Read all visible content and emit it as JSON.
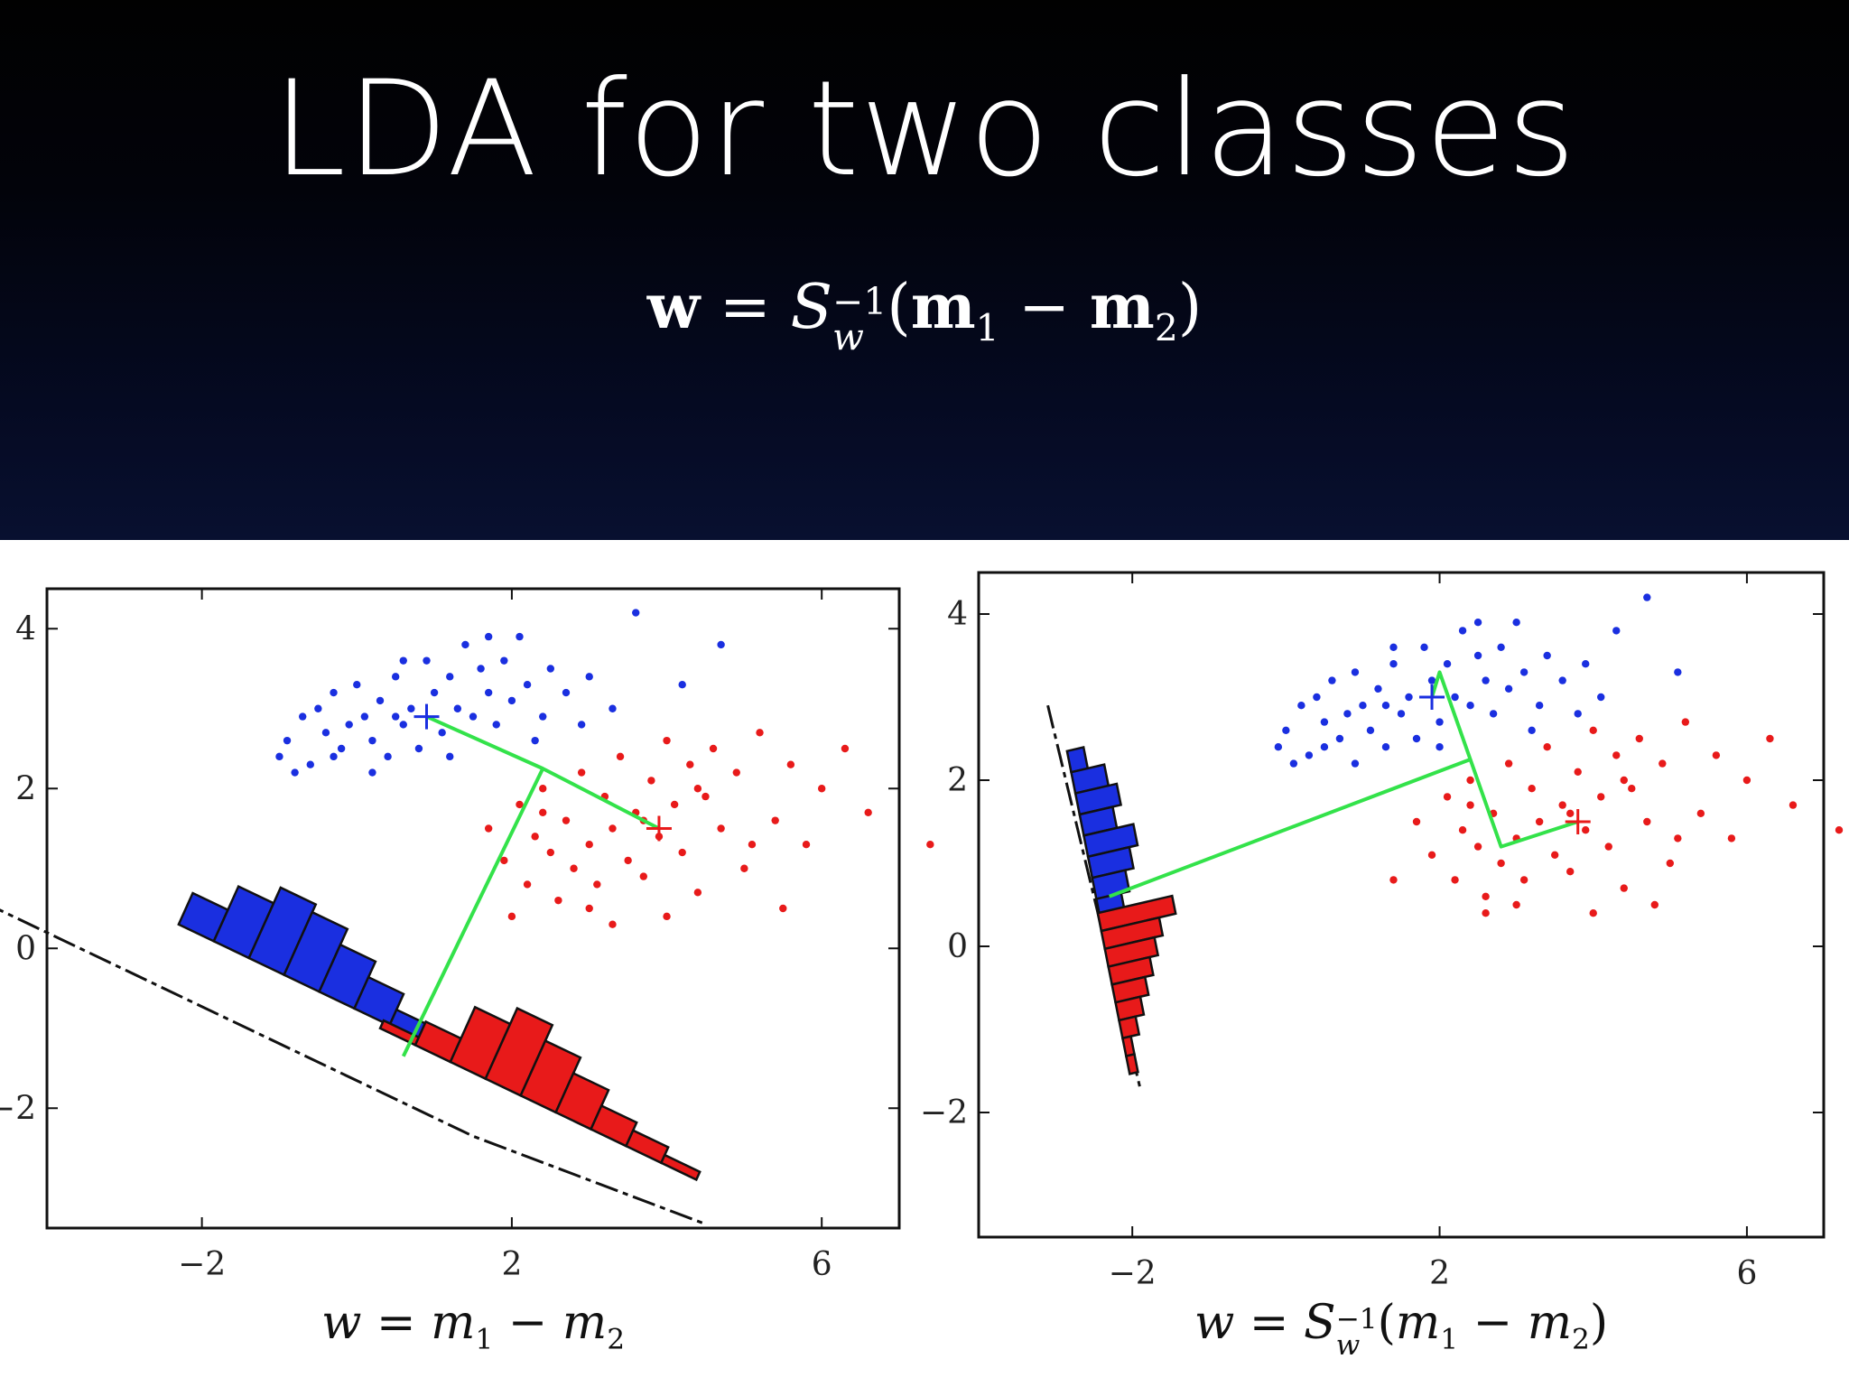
{
  "slide": {
    "title": "LDA for two classes",
    "formula": {
      "w": "w",
      "eq": " = ",
      "S": "S",
      "sup": "−1",
      "sub": "w",
      "paren_open": "(",
      "m1": "m",
      "m1_sub": "1",
      "minus": " − ",
      "m2": "m",
      "m2_sub": "2",
      "paren_close": ")"
    }
  },
  "captions": {
    "left": {
      "w": "w",
      "eq": " = ",
      "m1": "m",
      "m1_sub": "1",
      "minus": " − ",
      "m2": "m",
      "m2_sub": "2"
    },
    "right": {
      "w": "w",
      "eq": " = ",
      "S": "S",
      "sup": "−1",
      "sub": "w",
      "open": "(",
      "m1": "m",
      "m1_sub": "1",
      "minus": " − ",
      "m2": "m",
      "m2_sub": "2",
      "close": ")"
    }
  },
  "colors": {
    "class1": "#1a2fe0",
    "class2": "#e81a1a",
    "projection": "#33e24a",
    "axis": "#111111"
  },
  "chart_data": [
    {
      "type": "scatter",
      "title": "",
      "xlabel": "",
      "ylabel": "",
      "xlim": [
        -4,
        7
      ],
      "ylim": [
        -3.5,
        4.5
      ],
      "xticks": [
        -2,
        2,
        6
      ],
      "yticks": [
        -2,
        0,
        2,
        4
      ],
      "xtick_labels": [
        "−2",
        "2",
        "6"
      ],
      "ytick_labels": [
        "−2",
        "0",
        "2",
        "4"
      ],
      "grid": false,
      "series": [
        {
          "color": "#1a2fe0",
          "points": [
            [
              -1.0,
              2.4
            ],
            [
              -0.9,
              2.6
            ],
            [
              -0.7,
              2.9
            ],
            [
              -0.6,
              2.3
            ],
            [
              -0.5,
              3.0
            ],
            [
              -0.4,
              2.7
            ],
            [
              -0.3,
              3.2
            ],
            [
              -0.2,
              2.5
            ],
            [
              -0.1,
              2.8
            ],
            [
              0.0,
              3.3
            ],
            [
              0.1,
              2.9
            ],
            [
              0.2,
              2.6
            ],
            [
              0.3,
              3.1
            ],
            [
              0.4,
              2.4
            ],
            [
              0.5,
              3.4
            ],
            [
              0.6,
              2.8
            ],
            [
              0.7,
              3.0
            ],
            [
              0.8,
              2.5
            ],
            [
              0.9,
              3.6
            ],
            [
              1.0,
              3.2
            ],
            [
              1.1,
              2.7
            ],
            [
              1.2,
              3.4
            ],
            [
              1.3,
              3.0
            ],
            [
              1.4,
              3.8
            ],
            [
              1.5,
              2.9
            ],
            [
              1.6,
              3.5
            ],
            [
              1.7,
              3.2
            ],
            [
              1.8,
              2.8
            ],
            [
              1.9,
              3.6
            ],
            [
              2.0,
              3.1
            ],
            [
              2.1,
              3.9
            ],
            [
              2.2,
              3.3
            ],
            [
              2.4,
              2.9
            ],
            [
              2.5,
              3.5
            ],
            [
              2.7,
              3.2
            ],
            [
              2.9,
              2.8
            ],
            [
              3.0,
              3.4
            ],
            [
              3.3,
              3.0
            ],
            [
              3.6,
              4.2
            ],
            [
              4.2,
              3.3
            ],
            [
              4.7,
              3.8
            ],
            [
              -0.8,
              2.2
            ],
            [
              0.2,
              2.2
            ],
            [
              0.6,
              3.6
            ],
            [
              1.2,
              2.4
            ],
            [
              -0.3,
              2.4
            ],
            [
              0.5,
              2.9
            ],
            [
              1.7,
              3.9
            ],
            [
              2.3,
              2.6
            ]
          ]
        },
        {
          "color": "#e81a1a",
          "points": [
            [
              1.7,
              1.5
            ],
            [
              1.9,
              1.1
            ],
            [
              2.1,
              1.8
            ],
            [
              2.2,
              0.8
            ],
            [
              2.3,
              1.4
            ],
            [
              2.4,
              2.0
            ],
            [
              2.5,
              1.2
            ],
            [
              2.6,
              0.6
            ],
            [
              2.7,
              1.6
            ],
            [
              2.8,
              1.0
            ],
            [
              2.9,
              2.2
            ],
            [
              3.0,
              1.3
            ],
            [
              3.1,
              0.8
            ],
            [
              3.2,
              1.9
            ],
            [
              3.3,
              1.5
            ],
            [
              3.4,
              2.4
            ],
            [
              3.5,
              1.1
            ],
            [
              3.6,
              1.7
            ],
            [
              3.7,
              0.9
            ],
            [
              3.8,
              2.1
            ],
            [
              3.9,
              1.4
            ],
            [
              4.0,
              2.6
            ],
            [
              4.1,
              1.8
            ],
            [
              4.2,
              1.2
            ],
            [
              4.3,
              2.3
            ],
            [
              4.4,
              0.7
            ],
            [
              4.5,
              1.9
            ],
            [
              4.6,
              2.5
            ],
            [
              4.7,
              1.5
            ],
            [
              4.9,
              2.2
            ],
            [
              5.0,
              1.0
            ],
            [
              5.2,
              2.7
            ],
            [
              5.4,
              1.6
            ],
            [
              5.6,
              2.3
            ],
            [
              5.8,
              1.3
            ],
            [
              6.0,
              2.0
            ],
            [
              6.3,
              2.5
            ],
            [
              6.6,
              1.7
            ],
            [
              7.4,
              1.3
            ],
            [
              2.0,
              0.4
            ],
            [
              3.3,
              0.3
            ],
            [
              5.5,
              0.5
            ],
            [
              2.4,
              1.7
            ],
            [
              3.7,
              1.6
            ],
            [
              4.4,
              2.0
            ],
            [
              3.0,
              0.5
            ],
            [
              5.1,
              1.3
            ],
            [
              4.0,
              0.4
            ]
          ]
        }
      ],
      "means": [
        {
          "color": "#1a2fe0",
          "x": 0.9,
          "y": 2.9
        },
        {
          "color": "#e81a1a",
          "x": 3.9,
          "y": 1.5
        }
      ],
      "projection_line": {
        "points": [
          [
            -5.3,
            0.8
          ],
          [
            1.5,
            -2.35
          ],
          [
            4.5,
            -3.45
          ]
        ]
      },
      "segments": [
        {
          "color": "#33e24a",
          "points": [
            [
              0.9,
              2.9
            ],
            [
              2.4,
              2.25
            ],
            [
              3.9,
              1.5
            ]
          ]
        },
        {
          "color": "#33e24a",
          "points": [
            [
              2.4,
              2.25
            ],
            [
              0.6,
              -1.35
            ]
          ]
        }
      ],
      "histograms": [
        {
          "color": "#1a2fe0",
          "anchor": [
            -2.3,
            0.3
          ],
          "direction": [
            0.907,
            -0.421
          ],
          "bin_width": 0.5,
          "scale": 0.9,
          "counts": [
            4,
            7,
            9,
            8,
            6,
            4,
            2,
            1,
            1
          ]
        },
        {
          "color": "#e81a1a",
          "anchor": [
            0.3,
            -1.0
          ],
          "direction": [
            0.907,
            -0.421
          ],
          "bin_width": 0.5,
          "scale": 0.9,
          "counts": [
            1,
            3,
            7,
            9,
            7,
            5,
            3,
            2,
            1
          ]
        }
      ]
    },
    {
      "type": "scatter",
      "title": "",
      "xlabel": "",
      "ylabel": "",
      "xlim": [
        -4,
        7
      ],
      "ylim": [
        -3.5,
        4.5
      ],
      "xticks": [
        -2,
        2,
        6
      ],
      "yticks": [
        -2,
        0,
        2,
        4
      ],
      "xtick_labels": [
        "−2",
        "2",
        "6"
      ],
      "ytick_labels": [
        "−2",
        "0",
        "2",
        "4"
      ],
      "grid": false,
      "series": [
        {
          "color": "#1a2fe0",
          "points": [
            [
              -0.1,
              2.4
            ],
            [
              0.0,
              2.6
            ],
            [
              0.2,
              2.9
            ],
            [
              0.3,
              2.3
            ],
            [
              0.4,
              3.0
            ],
            [
              0.5,
              2.7
            ],
            [
              0.6,
              3.2
            ],
            [
              0.7,
              2.5
            ],
            [
              0.8,
              2.8
            ],
            [
              0.9,
              3.3
            ],
            [
              1.0,
              2.9
            ],
            [
              1.1,
              2.6
            ],
            [
              1.2,
              3.1
            ],
            [
              1.3,
              2.4
            ],
            [
              1.4,
              3.4
            ],
            [
              1.5,
              2.8
            ],
            [
              1.6,
              3.0
            ],
            [
              1.7,
              2.5
            ],
            [
              1.8,
              3.6
            ],
            [
              1.9,
              3.2
            ],
            [
              2.0,
              2.7
            ],
            [
              2.1,
              3.4
            ],
            [
              2.2,
              3.0
            ],
            [
              2.3,
              3.8
            ],
            [
              2.4,
              2.9
            ],
            [
              2.5,
              3.5
            ],
            [
              2.6,
              3.2
            ],
            [
              2.7,
              2.8
            ],
            [
              2.8,
              3.6
            ],
            [
              2.9,
              3.1
            ],
            [
              3.0,
              3.9
            ],
            [
              3.1,
              3.3
            ],
            [
              3.3,
              2.9
            ],
            [
              3.4,
              3.5
            ],
            [
              3.6,
              3.2
            ],
            [
              3.8,
              2.8
            ],
            [
              3.9,
              3.4
            ],
            [
              4.1,
              3.0
            ],
            [
              4.3,
              3.8
            ],
            [
              4.7,
              4.2
            ],
            [
              5.1,
              3.3
            ],
            [
              0.1,
              2.2
            ],
            [
              0.9,
              2.2
            ],
            [
              1.4,
              3.6
            ],
            [
              2.0,
              2.4
            ],
            [
              0.5,
              2.4
            ],
            [
              1.3,
              2.9
            ],
            [
              2.5,
              3.9
            ],
            [
              3.2,
              2.6
            ]
          ]
        },
        {
          "color": "#e81a1a",
          "points": [
            [
              1.7,
              1.5
            ],
            [
              1.9,
              1.1
            ],
            [
              2.1,
              1.8
            ],
            [
              2.2,
              0.8
            ],
            [
              2.3,
              1.4
            ],
            [
              2.4,
              2.0
            ],
            [
              2.5,
              1.2
            ],
            [
              2.6,
              0.6
            ],
            [
              2.7,
              1.6
            ],
            [
              2.8,
              1.0
            ],
            [
              2.9,
              2.2
            ],
            [
              3.0,
              1.3
            ],
            [
              3.1,
              0.8
            ],
            [
              3.2,
              1.9
            ],
            [
              3.3,
              1.5
            ],
            [
              3.4,
              2.4
            ],
            [
              3.5,
              1.1
            ],
            [
              3.6,
              1.7
            ],
            [
              3.7,
              0.9
            ],
            [
              3.8,
              2.1
            ],
            [
              3.9,
              1.4
            ],
            [
              4.0,
              2.6
            ],
            [
              4.1,
              1.8
            ],
            [
              4.2,
              1.2
            ],
            [
              4.3,
              2.3
            ],
            [
              4.4,
              0.7
            ],
            [
              4.5,
              1.9
            ],
            [
              4.6,
              2.5
            ],
            [
              4.7,
              1.5
            ],
            [
              4.9,
              2.2
            ],
            [
              5.0,
              1.0
            ],
            [
              5.2,
              2.7
            ],
            [
              5.4,
              1.6
            ],
            [
              5.6,
              2.3
            ],
            [
              5.8,
              1.3
            ],
            [
              6.0,
              2.0
            ],
            [
              6.3,
              2.5
            ],
            [
              6.6,
              1.7
            ],
            [
              7.2,
              1.4
            ],
            [
              1.4,
              0.8
            ],
            [
              2.6,
              0.4
            ],
            [
              4.8,
              0.5
            ],
            [
              2.4,
              1.7
            ],
            [
              3.7,
              1.6
            ],
            [
              4.4,
              2.0
            ],
            [
              3.0,
              0.5
            ],
            [
              5.1,
              1.3
            ],
            [
              4.0,
              0.4
            ]
          ]
        }
      ],
      "means": [
        {
          "color": "#1a2fe0",
          "x": 1.9,
          "y": 3.0
        },
        {
          "color": "#e81a1a",
          "x": 3.8,
          "y": 1.5
        }
      ],
      "projection_line": {
        "points": [
          [
            -3.1,
            2.9
          ],
          [
            -1.9,
            -1.7
          ]
        ]
      },
      "segments": [
        {
          "color": "#33e24a",
          "points": [
            [
              1.9,
              3.0
            ],
            [
              2.0,
              3.3
            ],
            [
              2.4,
              2.25
            ],
            [
              2.8,
              1.2
            ],
            [
              3.8,
              1.5
            ]
          ]
        },
        {
          "color": "#33e24a",
          "points": [
            [
              2.4,
              2.25
            ],
            [
              -2.3,
              0.6
            ]
          ]
        }
      ],
      "histograms": [
        {
          "color": "#1a2fe0",
          "anchor": [
            -2.85,
            2.35
          ],
          "direction": [
            0.21,
            -0.978
          ],
          "bin_width": 0.26,
          "scale": 0.2,
          "counts": [
            2,
            4,
            5,
            4,
            6,
            5,
            4,
            3,
            2
          ]
        },
        {
          "color": "#e81a1a",
          "anchor": [
            -2.45,
            0.4
          ],
          "direction": [
            0.21,
            -0.978
          ],
          "bin_width": 0.22,
          "scale": 0.2,
          "counts": [
            9,
            7,
            6,
            5,
            4,
            3,
            2,
            1,
            1
          ]
        }
      ]
    }
  ]
}
